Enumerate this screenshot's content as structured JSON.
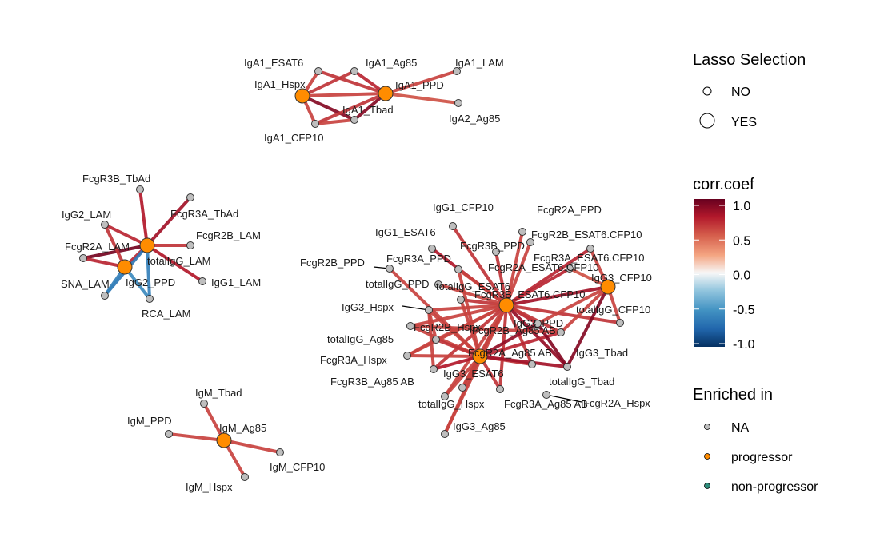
{
  "legend": {
    "lasso": {
      "title": "Lasso Selection",
      "items": [
        "NO",
        "YES"
      ]
    },
    "corr": {
      "title": "corr.coef",
      "ticks": [
        {
          "value": 1.0,
          "label": "1.0"
        },
        {
          "value": 0.5,
          "label": "0.5"
        },
        {
          "value": 0.0,
          "label": "0.0"
        },
        {
          "value": -0.5,
          "label": "-0.5"
        },
        {
          "value": -1.0,
          "label": "-1.0"
        }
      ],
      "colors": {
        "pos": "#67001F",
        "mid": "#F7F7F7",
        "neg": "#053061"
      }
    },
    "enriched": {
      "title": "Enriched in",
      "items": [
        {
          "label": "NA",
          "color": "#BEBEBE"
        },
        {
          "label": "progressor",
          "color": "#FF8C00"
        },
        {
          "label": "non-progressor",
          "color": "#2E8B7A"
        }
      ]
    }
  },
  "network": {
    "nodes": [
      {
        "id": "IgA1_ESAT6",
        "label": "IgA1_ESAT6",
        "selected": false,
        "group": "NA"
      },
      {
        "id": "IgA1_Ag85",
        "label": "IgA1_Ag85",
        "selected": false,
        "group": "NA"
      },
      {
        "id": "IgA1_LAM",
        "label": "IgA1_LAM",
        "selected": false,
        "group": "NA"
      },
      {
        "id": "IgA1_Hspx",
        "label": "IgA1_Hspx",
        "selected": true,
        "group": "progressor"
      },
      {
        "id": "IgA1_PPD",
        "label": "IgA1_PPD",
        "selected": true,
        "group": "progressor"
      },
      {
        "id": "IgA1_Tbad",
        "label": "IgA1_Tbad",
        "selected": false,
        "group": "NA"
      },
      {
        "id": "IgA2_Ag85",
        "label": "IgA2_Ag85",
        "selected": false,
        "group": "NA"
      },
      {
        "id": "IgA1_CFP10",
        "label": "IgA1_CFP10",
        "selected": false,
        "group": "NA"
      },
      {
        "id": "FcgR3B_TbAd",
        "label": "FcgR3B_TbAd",
        "selected": false,
        "group": "NA"
      },
      {
        "id": "FcgR3A_TbAd",
        "label": "FcgR3A_TbAd",
        "selected": false,
        "group": "NA"
      },
      {
        "id": "IgG2_LAM",
        "label": "IgG2_LAM",
        "selected": false,
        "group": "NA"
      },
      {
        "id": "FcgR2B_LAM",
        "label": "FcgR2B_LAM",
        "selected": false,
        "group": "NA"
      },
      {
        "id": "FcgR2A_LAM",
        "label": "FcgR2A_LAM",
        "selected": false,
        "group": "NA"
      },
      {
        "id": "totalIgG_LAM",
        "label": "totalIgG_LAM",
        "selected": true,
        "group": "progressor"
      },
      {
        "id": "IgG2_PPD",
        "label": "IgG2_PPD",
        "selected": true,
        "group": "progressor"
      },
      {
        "id": "SNA_LAM",
        "label": "SNA_LAM",
        "selected": false,
        "group": "NA"
      },
      {
        "id": "IgG1_LAM",
        "label": "IgG1_LAM",
        "selected": false,
        "group": "NA"
      },
      {
        "id": "RCA_LAM",
        "label": "RCA_LAM",
        "selected": false,
        "group": "NA"
      },
      {
        "id": "IgM_Tbad",
        "label": "IgM_Tbad",
        "selected": false,
        "group": "NA"
      },
      {
        "id": "IgM_PPD",
        "label": "IgM_PPD",
        "selected": false,
        "group": "NA"
      },
      {
        "id": "IgM_Ag85",
        "label": "IgM_Ag85",
        "selected": true,
        "group": "progressor"
      },
      {
        "id": "IgM_CFP10",
        "label": "IgM_CFP10",
        "selected": false,
        "group": "NA"
      },
      {
        "id": "IgM_Hspx",
        "label": "IgM_Hspx",
        "selected": false,
        "group": "NA"
      },
      {
        "id": "IgG1_CFP10",
        "label": "IgG1_CFP10",
        "selected": false,
        "group": "NA"
      },
      {
        "id": "FcgR2A_PPD",
        "label": "FcgR2A_PPD",
        "selected": false,
        "group": "NA"
      },
      {
        "id": "IgG1_ESAT6",
        "label": "IgG1_ESAT6",
        "selected": false,
        "group": "NA"
      },
      {
        "id": "FcgR2B_ESAT6.CFP10",
        "label": "FcgR2B_ESAT6.CFP10",
        "selected": false,
        "group": "NA"
      },
      {
        "id": "FcgR3B_PPD",
        "label": "FcgR3B_PPD",
        "selected": false,
        "group": "NA"
      },
      {
        "id": "FcgR2B_PPD",
        "label": "FcgR2B_PPD",
        "selected": false,
        "group": "NA"
      },
      {
        "id": "FcgR3A_PPD",
        "label": "FcgR3A_PPD",
        "selected": false,
        "group": "NA"
      },
      {
        "id": "FcgR3A_ESAT6.CFP10",
        "label": "FcgR3A_ESAT6.CFP10",
        "selected": false,
        "group": "NA"
      },
      {
        "id": "FcgR2A_ESAT6.CFP10",
        "label": "FcgR2A_ESAT6.CFP10",
        "selected": false,
        "group": "NA"
      },
      {
        "id": "IgG3_CFP10",
        "label": "IgG3_CFP10",
        "selected": true,
        "group": "progressor"
      },
      {
        "id": "totalIgG_PPD",
        "label": "totalIgG_PPD",
        "selected": false,
        "group": "NA"
      },
      {
        "id": "totalIgG_ESAT6",
        "label": "totalIgG_ESAT6",
        "selected": false,
        "group": "NA"
      },
      {
        "id": "FcgR3B_ESAT6.CFP10",
        "label": "FcgR3B_ESAT6.CFP10",
        "selected": true,
        "group": "progressor"
      },
      {
        "id": "IgG3_Hspx",
        "label": "IgG3_Hspx",
        "selected": false,
        "group": "NA"
      },
      {
        "id": "totalIgG_CFP10",
        "label": "totalIgG_CFP10",
        "selected": false,
        "group": "NA"
      },
      {
        "id": "totalIgG_Ag85",
        "label": "totalIgG_Ag85",
        "selected": false,
        "group": "NA"
      },
      {
        "id": "FcgR2B_Hspx",
        "label": "FcgR2B_Hspx",
        "selected": false,
        "group": "NA"
      },
      {
        "id": "IgG3_PPD",
        "label": "IgG3_PPD",
        "selected": false,
        "group": "NA"
      },
      {
        "id": "FcgR2B_Ag85 AB",
        "label": "FcgR2B_Ag85 AB",
        "selected": false,
        "group": "NA"
      },
      {
        "id": "FcgR3A_Hspx",
        "label": "FcgR3A_Hspx",
        "selected": false,
        "group": "NA"
      },
      {
        "id": "FcgR2A_Ag85 AB",
        "label": "FcgR2A_Ag85 AB",
        "selected": true,
        "group": "progressor"
      },
      {
        "id": "IgG3_Tbad",
        "label": "IgG3_Tbad",
        "selected": false,
        "group": "NA"
      },
      {
        "id": "IgG3_ESAT6",
        "label": "IgG3_ESAT6",
        "selected": false,
        "group": "NA"
      },
      {
        "id": "FcgR3B_Ag85 AB",
        "label": "FcgR3B_Ag85 AB",
        "selected": false,
        "group": "NA"
      },
      {
        "id": "totalIgG_Tbad",
        "label": "totalIgG_Tbad",
        "selected": false,
        "group": "NA"
      },
      {
        "id": "totalIgG_Hspx",
        "label": "totalIgG_Hspx",
        "selected": false,
        "group": "NA"
      },
      {
        "id": "FcgR3A_Ag85 AB",
        "label": "FcgR3A_Ag85 AB",
        "selected": false,
        "group": "NA"
      },
      {
        "id": "FcgR2A_Hspx",
        "label": "FcgR2A_Hspx",
        "selected": false,
        "group": "NA"
      },
      {
        "id": "IgG3_Ag85",
        "label": "IgG3_Ag85",
        "selected": false,
        "group": "NA"
      }
    ],
    "edges": [
      {
        "source": "IgA1_Hspx",
        "target": "IgA1_ESAT6",
        "corr": 0.6
      },
      {
        "source": "IgA1_Hspx",
        "target": "IgA1_Ag85",
        "corr": 0.65
      },
      {
        "source": "IgA1_Hspx",
        "target": "IgA1_PPD",
        "corr": 0.6
      },
      {
        "source": "IgA1_Hspx",
        "target": "IgA1_Tbad",
        "corr": 0.9
      },
      {
        "source": "IgA1_Hspx",
        "target": "IgA1_CFP10",
        "corr": 0.6
      },
      {
        "source": "IgA1_PPD",
        "target": "IgA1_ESAT6",
        "corr": 0.65
      },
      {
        "source": "IgA1_PPD",
        "target": "IgA1_Ag85",
        "corr": 0.7
      },
      {
        "source": "IgA1_PPD",
        "target": "IgA1_LAM",
        "corr": 0.6
      },
      {
        "source": "IgA1_PPD",
        "target": "IgA1_Tbad",
        "corr": 0.9
      },
      {
        "source": "IgA1_PPD",
        "target": "IgA1_CFP10",
        "corr": 0.65
      },
      {
        "source": "IgA1_PPD",
        "target": "IgA2_Ag85",
        "corr": 0.55
      },
      {
        "source": "IgA1_CFP10",
        "target": "IgA1_Tbad",
        "corr": 0.6
      },
      {
        "source": "totalIgG_LAM",
        "target": "FcgR3B_TbAd",
        "corr": 0.75
      },
      {
        "source": "totalIgG_LAM",
        "target": "FcgR3A_TbAd",
        "corr": 0.8
      },
      {
        "source": "totalIgG_LAM",
        "target": "IgG2_LAM",
        "corr": 0.7
      },
      {
        "source": "totalIgG_LAM",
        "target": "FcgR2B_LAM",
        "corr": 0.65
      },
      {
        "source": "totalIgG_LAM",
        "target": "FcgR2A_LAM",
        "corr": 0.95
      },
      {
        "source": "totalIgG_LAM",
        "target": "IgG2_PPD",
        "corr": 0.7
      },
      {
        "source": "totalIgG_LAM",
        "target": "IgG1_LAM",
        "corr": 0.75
      },
      {
        "source": "totalIgG_LAM",
        "target": "SNA_LAM",
        "corr": -0.65
      },
      {
        "source": "totalIgG_LAM",
        "target": "RCA_LAM",
        "corr": -0.6
      },
      {
        "source": "IgG2_PPD",
        "target": "FcgR2A_LAM",
        "corr": 0.7
      },
      {
        "source": "IgG2_PPD",
        "target": "IgG2_LAM",
        "corr": 0.65
      },
      {
        "source": "IgG2_PPD",
        "target": "SNA_LAM",
        "corr": -0.6
      },
      {
        "source": "IgG2_PPD",
        "target": "RCA_LAM",
        "corr": -0.55
      },
      {
        "source": "IgM_Ag85",
        "target": "IgM_Tbad",
        "corr": 0.6
      },
      {
        "source": "IgM_Ag85",
        "target": "IgM_PPD",
        "corr": 0.6
      },
      {
        "source": "IgM_Ag85",
        "target": "IgM_CFP10",
        "corr": 0.6
      },
      {
        "source": "IgM_Ag85",
        "target": "IgM_Hspx",
        "corr": 0.6
      },
      {
        "source": "FcgR3B_ESAT6.CFP10",
        "target": "IgG1_CFP10",
        "corr": 0.65
      },
      {
        "source": "FcgR3B_ESAT6.CFP10",
        "target": "FcgR2A_PPD",
        "corr": 0.6
      },
      {
        "source": "FcgR3B_ESAT6.CFP10",
        "target": "IgG1_ESAT6",
        "corr": 0.75
      },
      {
        "source": "FcgR3B_ESAT6.CFP10",
        "target": "FcgR2B_ESAT6.CFP10",
        "corr": 0.6
      },
      {
        "source": "FcgR3B_ESAT6.CFP10",
        "target": "FcgR3B_PPD",
        "corr": 0.65
      },
      {
        "source": "FcgR3B_ESAT6.CFP10",
        "target": "FcgR3A_PPD",
        "corr": 0.6
      },
      {
        "source": "FcgR3B_ESAT6.CFP10",
        "target": "FcgR3A_ESAT6.CFP10",
        "corr": 0.7
      },
      {
        "source": "FcgR3B_ESAT6.CFP10",
        "target": "FcgR2A_ESAT6.CFP10",
        "corr": 0.7
      },
      {
        "source": "FcgR3B_ESAT6.CFP10",
        "target": "IgG3_CFP10",
        "corr": 0.8
      },
      {
        "source": "FcgR3B_ESAT6.CFP10",
        "target": "totalIgG_ESAT6",
        "corr": 0.65
      },
      {
        "source": "FcgR3B_ESAT6.CFP10",
        "target": "totalIgG_PPD",
        "corr": 0.6
      },
      {
        "source": "FcgR3B_ESAT6.CFP10",
        "target": "IgG3_Hspx",
        "corr": 0.6
      },
      {
        "source": "FcgR3B_ESAT6.CFP10",
        "target": "totalIgG_CFP10",
        "corr": 0.65
      },
      {
        "source": "FcgR3B_ESAT6.CFP10",
        "target": "totalIgG_Ag85",
        "corr": 0.6
      },
      {
        "source": "FcgR3B_ESAT6.CFP10",
        "target": "FcgR2B_Hspx",
        "corr": 0.6
      },
      {
        "source": "FcgR3B_ESAT6.CFP10",
        "target": "IgG3_PPD",
        "corr": 0.7
      },
      {
        "source": "FcgR3B_ESAT6.CFP10",
        "target": "FcgR2B_Ag85 AB",
        "corr": 0.65
      },
      {
        "source": "FcgR3B_ESAT6.CFP10",
        "target": "FcgR3A_Hspx",
        "corr": 0.6
      },
      {
        "source": "FcgR3B_ESAT6.CFP10",
        "target": "FcgR2A_Ag85 AB",
        "corr": 0.75
      },
      {
        "source": "FcgR3B_ESAT6.CFP10",
        "target": "IgG3_Tbad",
        "corr": 0.85
      },
      {
        "source": "FcgR3B_ESAT6.CFP10",
        "target": "IgG3_ESAT6",
        "corr": 0.65
      },
      {
        "source": "FcgR3B_ESAT6.CFP10",
        "target": "FcgR3B_Ag85 AB",
        "corr": 0.6
      },
      {
        "source": "FcgR3B_ESAT6.CFP10",
        "target": "totalIgG_Tbad",
        "corr": 0.65
      },
      {
        "source": "FcgR3B_ESAT6.CFP10",
        "target": "totalIgG_Hspx",
        "corr": 0.6
      },
      {
        "source": "FcgR3B_ESAT6.CFP10",
        "target": "FcgR3A_Ag85 AB",
        "corr": 0.65
      },
      {
        "source": "FcgR3B_ESAT6.CFP10",
        "target": "IgG3_Ag85",
        "corr": 0.6
      },
      {
        "source": "IgG3_CFP10",
        "target": "FcgR3A_ESAT6.CFP10",
        "corr": 0.6
      },
      {
        "source": "IgG3_CFP10",
        "target": "totalIgG_CFP10",
        "corr": 0.6
      },
      {
        "source": "IgG3_CFP10",
        "target": "FcgR2A_ESAT6.CFP10",
        "corr": 0.55
      },
      {
        "source": "IgG3_CFP10",
        "target": "IgG3_PPD",
        "corr": 0.6
      },
      {
        "source": "IgG3_CFP10",
        "target": "IgG3_Tbad",
        "corr": 0.9
      },
      {
        "source": "IgG3_CFP10",
        "target": "FcgR2B_Ag85 AB",
        "corr": 0.6
      },
      {
        "source": "FcgR2A_Ag85 AB",
        "target": "totalIgG_Ag85",
        "corr": 0.6
      },
      {
        "source": "FcgR2A_Ag85 AB",
        "target": "FcgR2B_Hspx",
        "corr": 0.65
      },
      {
        "source": "FcgR2A_Ag85 AB",
        "target": "FcgR3A_Hspx",
        "corr": 0.6
      },
      {
        "source": "FcgR2A_Ag85 AB",
        "target": "FcgR3B_Ag85 AB",
        "corr": 0.6
      },
      {
        "source": "FcgR2A_Ag85 AB",
        "target": "IgG3_ESAT6",
        "corr": 0.75
      },
      {
        "source": "FcgR2A_Ag85 AB",
        "target": "totalIgG_Hspx",
        "corr": 0.6
      },
      {
        "source": "FcgR2A_Ag85 AB",
        "target": "FcgR3A_Ag85 AB",
        "corr": 0.65
      },
      {
        "source": "FcgR2A_Ag85 AB",
        "target": "IgG3_Ag85",
        "corr": 0.6
      },
      {
        "source": "FcgR2A_Ag85 AB",
        "target": "FcgR2B_Ag85 AB",
        "corr": 0.7
      },
      {
        "source": "FcgR2A_Ag85 AB",
        "target": "totalIgG_Tbad",
        "corr": 0.65
      },
      {
        "source": "FcgR2A_Ag85 AB",
        "target": "IgG3_Tbad",
        "corr": 0.8
      },
      {
        "source": "FcgR2A_Ag85 AB",
        "target": "IgG3_PPD",
        "corr": 0.85
      },
      {
        "source": "FcgR2A_Ag85 AB",
        "target": "FcgR2B_PPD",
        "corr": 0.6
      },
      {
        "source": "FcgR2A_Ag85 AB",
        "target": "FcgR3A_PPD",
        "corr": 0.6
      },
      {
        "source": "FcgR2A_Ag85 AB",
        "target": "IgG3_Hspx",
        "corr": 0.6
      },
      {
        "source": "FcgR2A_Ag85 AB",
        "target": "totalIgG_ESAT6",
        "corr": 0.6
      },
      {
        "source": "IgG3_Tbad",
        "target": "IgG3_PPD",
        "corr": 0.9
      },
      {
        "source": "FcgR2B_Hspx",
        "target": "IgG3_Hspx",
        "corr": 0.6
      },
      {
        "source": "FcgR3A_Hspx",
        "target": "FcgR2B_Hspx",
        "corr": 0.6
      },
      {
        "source": "totalIgG_Ag85",
        "target": "FcgR2B_Ag85 AB",
        "corr": 0.6
      },
      {
        "source": "IgG3_ESAT6",
        "target": "IgG3_Hspx",
        "corr": 0.6
      }
    ]
  }
}
